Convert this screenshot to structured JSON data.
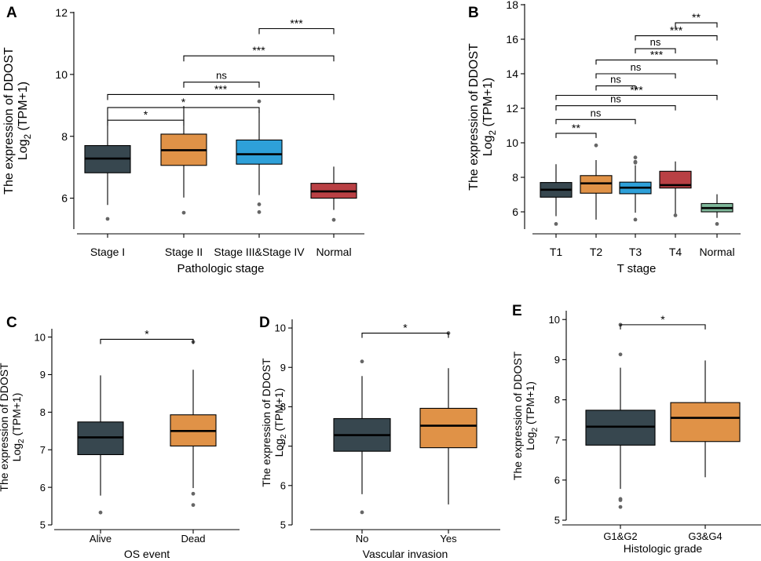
{
  "chart_data": [
    {
      "id": "A",
      "type": "box",
      "panel_letter": "A",
      "ylabel": "The expression of DDOST",
      "ylabel_sub": "Log",
      "ylabel_sub2": "2",
      "ylabel_sub3": " (TPM+1)",
      "xlabel": "Pathologic stage",
      "ylim": [
        5,
        12
      ],
      "yticks": [
        6,
        8,
        10,
        12
      ],
      "colors": [
        "#37474f",
        "#e09247",
        "#2ea0d9",
        "#b94044"
      ],
      "categories": [
        "Stage I",
        "Stage II",
        "Stage III&Stage IV",
        "Normal"
      ],
      "boxes": [
        {
          "whisker_low": 5.78,
          "q1": 6.82,
          "median": 7.28,
          "q3": 7.7,
          "whisker_high": 8.76,
          "outliers": [
            5.33
          ]
        },
        {
          "whisker_low": 6.02,
          "q1": 7.06,
          "median": 7.55,
          "q3": 8.07,
          "whisker_high": 8.98,
          "outliers": [
            5.53
          ]
        },
        {
          "whisker_low": 6.1,
          "q1": 7.1,
          "median": 7.42,
          "q3": 7.88,
          "whisker_high": 8.84,
          "outliers": [
            9.13,
            5.8,
            5.55
          ]
        },
        {
          "whisker_low": 5.62,
          "q1": 6.0,
          "median": 6.22,
          "q3": 6.48,
          "whisker_high": 7.02,
          "outliers": [
            5.3
          ]
        }
      ],
      "brackets": [
        {
          "from": 1,
          "to": 2,
          "y": 8.52,
          "label": "*"
        },
        {
          "from": 1,
          "to": 3,
          "y": 8.93,
          "label": "*"
        },
        {
          "from": 1,
          "to": 4,
          "y": 9.35,
          "label": "***"
        },
        {
          "from": 2,
          "to": 3,
          "y": 9.75,
          "label": "ns"
        },
        {
          "from": 2,
          "to": 4,
          "y": 10.6,
          "label": "***"
        },
        {
          "from": 3,
          "to": 4,
          "y": 11.48,
          "label": "***"
        }
      ]
    },
    {
      "id": "B",
      "type": "box",
      "panel_letter": "B",
      "ylabel": "The expression of DDOST",
      "ylabel_sub": "Log",
      "ylabel_sub2": "2",
      "ylabel_sub3": " (TPM+1)",
      "xlabel": "T stage",
      "ylim": [
        5,
        18
      ],
      "yticks": [
        6,
        8,
        10,
        12,
        14,
        16,
        18
      ],
      "colors": [
        "#37474f",
        "#e09247",
        "#2ea0d9",
        "#b94044",
        "#7fb89a"
      ],
      "categories": [
        "T1",
        "T2",
        "T3",
        "T4",
        "Normal"
      ],
      "boxes": [
        {
          "whisker_low": 5.75,
          "q1": 6.85,
          "median": 7.28,
          "q3": 7.7,
          "whisker_high": 8.76,
          "outliers": [
            5.3
          ]
        },
        {
          "whisker_low": 5.55,
          "q1": 7.08,
          "median": 7.65,
          "q3": 8.1,
          "whisker_high": 9.0,
          "outliers": [
            9.85
          ]
        },
        {
          "whisker_low": 5.95,
          "q1": 7.05,
          "median": 7.4,
          "q3": 7.72,
          "whisker_high": 8.7,
          "outliers": [
            9.15,
            8.9,
            8.85,
            5.55
          ]
        },
        {
          "whisker_low": 5.85,
          "q1": 7.38,
          "median": 7.55,
          "q3": 8.35,
          "whisker_high": 8.92,
          "outliers": [
            5.8
          ]
        },
        {
          "whisker_low": 5.65,
          "q1": 6.0,
          "median": 6.22,
          "q3": 6.48,
          "whisker_high": 7.02,
          "outliers": [
            5.3
          ]
        }
      ],
      "brackets": [
        {
          "from": 1,
          "to": 2,
          "y": 10.55,
          "label": "**"
        },
        {
          "from": 1,
          "to": 3,
          "y": 11.35,
          "label": "ns"
        },
        {
          "from": 1,
          "to": 4,
          "y": 12.15,
          "label": "ns"
        },
        {
          "from": 1,
          "to": 5,
          "y": 12.75,
          "label": "***"
        },
        {
          "from": 2,
          "to": 3,
          "y": 13.3,
          "label": "ns"
        },
        {
          "from": 2,
          "to": 4,
          "y": 14.0,
          "label": "ns"
        },
        {
          "from": 2,
          "to": 5,
          "y": 14.8,
          "label": "***"
        },
        {
          "from": 3,
          "to": 4,
          "y": 15.45,
          "label": "ns"
        },
        {
          "from": 3,
          "to": 5,
          "y": 16.2,
          "label": "***"
        },
        {
          "from": 4,
          "to": 5,
          "y": 16.95,
          "label": "**"
        }
      ]
    },
    {
      "id": "C",
      "type": "box",
      "panel_letter": "C",
      "ylabel": "The expression of DDOST",
      "ylabel_sub": "Log",
      "ylabel_sub2": "2",
      "ylabel_sub3": " (TPM+1)",
      "xlabel": "OS event",
      "ylim": [
        5,
        10.2
      ],
      "yticks": [
        5,
        6,
        7,
        8,
        9,
        10
      ],
      "colors": [
        "#37474f",
        "#e09247"
      ],
      "categories": [
        "Alive",
        "Dead"
      ],
      "boxes": [
        {
          "whisker_low": 5.78,
          "q1": 6.87,
          "median": 7.33,
          "q3": 7.74,
          "whisker_high": 8.98,
          "outliers": [
            5.33
          ]
        },
        {
          "whisker_low": 5.98,
          "q1": 7.1,
          "median": 7.5,
          "q3": 7.93,
          "whisker_high": 9.13,
          "outliers": [
            9.87,
            5.83,
            5.53
          ]
        }
      ],
      "brackets": [
        {
          "from": 1,
          "to": 2,
          "y": 9.94,
          "label": "*"
        }
      ]
    },
    {
      "id": "D",
      "type": "box",
      "panel_letter": "D",
      "ylabel": "The expression of DDOST",
      "ylabel_sub": "Log",
      "ylabel_sub2": "2",
      "ylabel_sub3": " (TPM+1)",
      "xlabel": "Vascular invasion",
      "ylim": [
        5,
        10.2
      ],
      "yticks": [
        5,
        6,
        7,
        8,
        9,
        10
      ],
      "colors": [
        "#37474f",
        "#e09247"
      ],
      "categories": [
        "No",
        "Yes"
      ],
      "boxes": [
        {
          "whisker_low": 5.78,
          "q1": 6.87,
          "median": 7.28,
          "q3": 7.7,
          "whisker_high": 8.78,
          "outliers": [
            9.15,
            5.32
          ]
        },
        {
          "whisker_low": 5.52,
          "q1": 6.96,
          "median": 7.52,
          "q3": 7.96,
          "whisker_high": 8.98,
          "outliers": [
            9.87
          ]
        }
      ],
      "brackets": [
        {
          "from": 1,
          "to": 2,
          "y": 9.87,
          "label": "*"
        }
      ]
    },
    {
      "id": "E",
      "type": "box",
      "panel_letter": "E",
      "ylabel": "The expression of DDOST",
      "ylabel_sub": "Log",
      "ylabel_sub2": "2",
      "ylabel_sub3": " (TPM+1)",
      "xlabel": "Histologic grade",
      "ylim": [
        5,
        10.2
      ],
      "yticks": [
        5,
        6,
        7,
        8,
        9,
        10
      ],
      "colors": [
        "#37474f",
        "#e09247"
      ],
      "categories": [
        "G1&G2",
        "G3&G4"
      ],
      "boxes": [
        {
          "whisker_low": 5.78,
          "q1": 6.87,
          "median": 7.33,
          "q3": 7.74,
          "whisker_high": 8.8,
          "outliers": [
            9.87,
            9.13,
            5.53,
            5.5,
            5.33
          ]
        },
        {
          "whisker_low": 6.07,
          "q1": 6.96,
          "median": 7.55,
          "q3": 7.93,
          "whisker_high": 8.98,
          "outliers": []
        }
      ],
      "brackets": [
        {
          "from": 1,
          "to": 2,
          "y": 9.87,
          "label": "*"
        }
      ]
    }
  ]
}
